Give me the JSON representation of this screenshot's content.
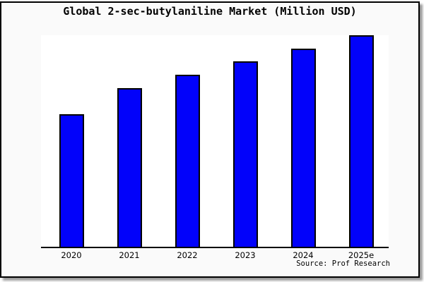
{
  "title": "Global 2-sec-butylaniline Market (Million USD)",
  "source": "Source: Prof Research",
  "style": {
    "frame_background": "#fafafa",
    "plot_background": "#ffffff",
    "frame_border_color": "#000000",
    "shadow_color": "#9a9a9a"
  },
  "chart_data": {
    "type": "bar",
    "title": "Global 2-sec-butylaniline Market (Million USD)",
    "categories": [
      "2020",
      "2021",
      "2022",
      "2023",
      "2024",
      "2025e"
    ],
    "values": [
      62.8,
      75.1,
      81.4,
      87.7,
      93.7,
      100
    ],
    "values_note": "No y-axis shown in chart; values are relative bar heights as % of the 2025e bar",
    "xlabel": "",
    "ylabel": "",
    "ylim": [
      0,
      100
    ],
    "grid": false,
    "legend": false,
    "y_axis_visible": false,
    "bar_color": "#0202fa",
    "bar_edge_color": "#000000",
    "source_label": "Source: Prof Research"
  }
}
